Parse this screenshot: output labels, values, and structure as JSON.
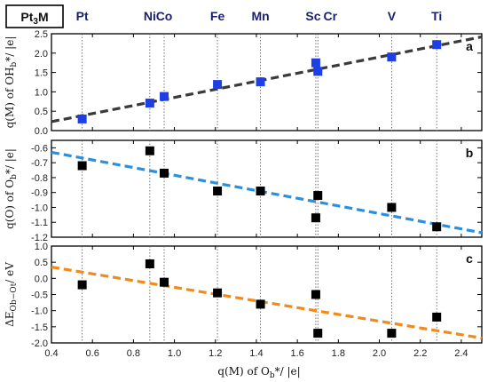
{
  "header": {
    "compound_prefix": "Pt",
    "compound_sub": "3",
    "compound_suffix": "M"
  },
  "metals": [
    {
      "name": "Pt",
      "x": 0.55
    },
    {
      "name": "Ni",
      "x": 0.88
    },
    {
      "name": "Co",
      "x": 0.95
    },
    {
      "name": "Fe",
      "x": 1.21
    },
    {
      "name": "Mn",
      "x": 1.42
    },
    {
      "name": "Sc",
      "x": 1.69
    },
    {
      "name": "Cr",
      "x": 1.7
    },
    {
      "name": "V",
      "x": 2.06
    },
    {
      "name": "Ti",
      "x": 2.28
    }
  ],
  "chart_data": [
    {
      "type": "scatter",
      "panel_label": "a",
      "ylabel_main": "q(M) of OH",
      "ylabel_sub": "b",
      "ylabel_tail": "*/ |e|",
      "xlim": [
        0.4,
        2.5
      ],
      "ylim": [
        0,
        2.5
      ],
      "yticks": [
        0.0,
        0.5,
        1.0,
        1.5,
        2.0,
        2.5
      ],
      "marker_color": "#1f3fe6",
      "fit_color": "#3a3a3a",
      "fit": {
        "x": [
          0.4,
          2.5
        ],
        "y": [
          0.23,
          2.42
        ]
      },
      "points": [
        {
          "x": 0.55,
          "y": 0.3
        },
        {
          "x": 0.88,
          "y": 0.71
        },
        {
          "x": 0.95,
          "y": 0.88
        },
        {
          "x": 1.21,
          "y": 1.19
        },
        {
          "x": 1.42,
          "y": 1.26
        },
        {
          "x": 1.69,
          "y": 1.75
        },
        {
          "x": 1.7,
          "y": 1.53
        },
        {
          "x": 2.06,
          "y": 1.9
        },
        {
          "x": 2.28,
          "y": 2.22
        }
      ]
    },
    {
      "type": "scatter",
      "panel_label": "b",
      "ylabel_main": "q(O) of O",
      "ylabel_sub": "b",
      "ylabel_tail": "*/ |e|",
      "xlim": [
        0.4,
        2.5
      ],
      "ylim": [
        -1.2,
        -0.55
      ],
      "yticks": [
        -0.6,
        -0.7,
        -0.8,
        -0.9,
        -1.0,
        -1.1,
        -1.2
      ],
      "marker_color": "#000000",
      "fit_color": "#2b8fe0",
      "fit": {
        "x": [
          0.4,
          2.5
        ],
        "y": [
          -0.63,
          -1.17
        ]
      },
      "points": [
        {
          "x": 0.55,
          "y": -0.72
        },
        {
          "x": 0.88,
          "y": -0.62
        },
        {
          "x": 0.95,
          "y": -0.77
        },
        {
          "x": 1.21,
          "y": -0.89
        },
        {
          "x": 1.42,
          "y": -0.89
        },
        {
          "x": 1.69,
          "y": -1.07
        },
        {
          "x": 1.7,
          "y": -0.92
        },
        {
          "x": 2.06,
          "y": -1.0
        },
        {
          "x": 2.28,
          "y": -1.13
        }
      ]
    },
    {
      "type": "scatter",
      "panel_label": "c",
      "ylabel_main": "ΔE",
      "ylabel_sub": "Ob−Ot",
      "ylabel_tail": "/ eV",
      "xlim": [
        0.4,
        2.5
      ],
      "ylim": [
        -2.0,
        1.0
      ],
      "yticks": [
        1.0,
        0.5,
        0.0,
        -0.5,
        -1.0,
        -1.5,
        -2.0
      ],
      "marker_color": "#000000",
      "fit_color": "#f08a1c",
      "fit": {
        "x": [
          0.4,
          2.5
        ],
        "y": [
          0.35,
          -1.85
        ]
      },
      "points": [
        {
          "x": 0.55,
          "y": -0.2
        },
        {
          "x": 0.88,
          "y": 0.45
        },
        {
          "x": 0.95,
          "y": -0.12
        },
        {
          "x": 1.21,
          "y": -0.45
        },
        {
          "x": 1.42,
          "y": -0.8
        },
        {
          "x": 1.69,
          "y": -0.5
        },
        {
          "x": 1.7,
          "y": -1.7
        },
        {
          "x": 2.06,
          "y": -1.7
        },
        {
          "x": 2.28,
          "y": -1.2
        }
      ]
    }
  ],
  "xaxis": {
    "label_main": "q(M) of O",
    "label_sub": "b",
    "label_tail": "*/ |e|",
    "ticks": [
      "0.4",
      "0.6",
      "0.8",
      "1.0",
      "1.2",
      "1.4",
      "1.6",
      "1.8",
      "2.0",
      "2.2",
      "2.4"
    ]
  }
}
